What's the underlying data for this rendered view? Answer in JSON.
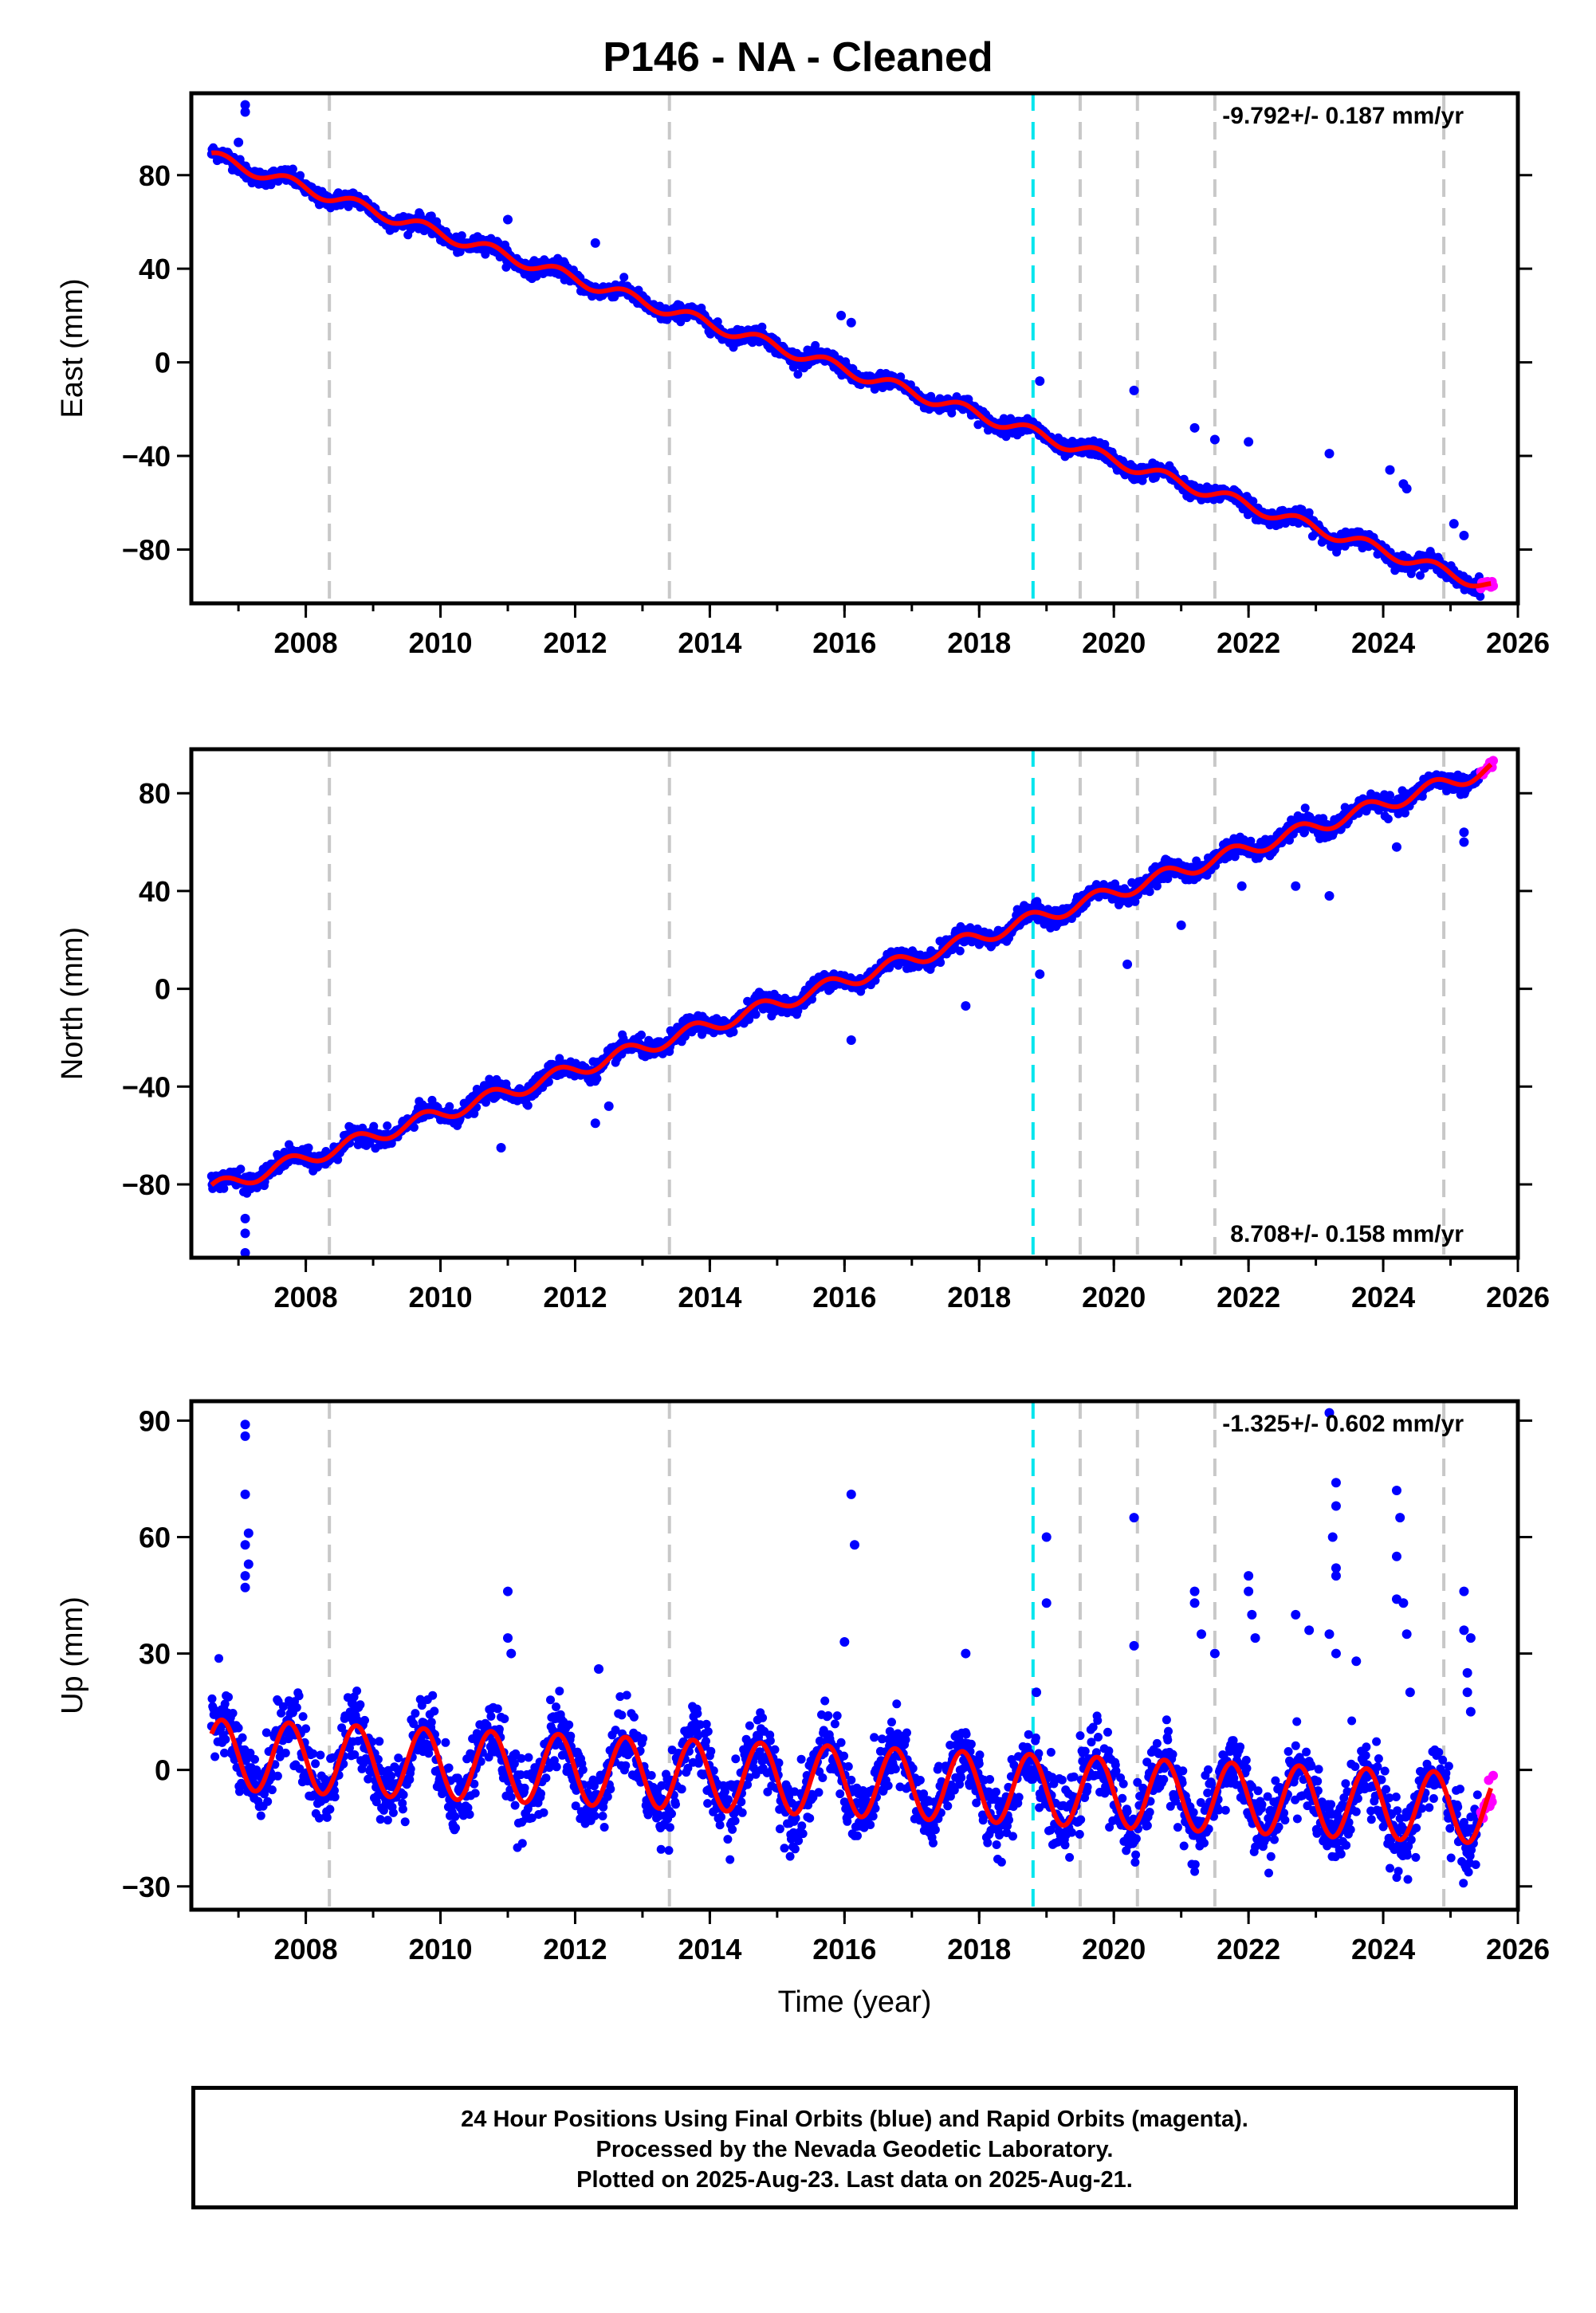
{
  "title": "P146  - NA - Cleaned",
  "footer": {
    "line1": "24 Hour Positions Using Final Orbits (blue) and Rapid Orbits (magenta).",
    "line2": "Processed by the Nevada Geodetic Laboratory.",
    "line3": "Plotted on 2025-Aug-23. Last data on 2025-Aug-21."
  },
  "colors": {
    "final_orbits": "#0000ff",
    "rapid_orbits": "#ff00ff",
    "model_fit": "#ff0000",
    "event_line_gray": "#c8c8c8",
    "event_line_cyan": "#00e5ee"
  },
  "chart_data": [
    {
      "type": "scatter",
      "ylabel": "East (mm)",
      "xlim": [
        2006.3,
        2026.0
      ],
      "ylim": [
        -103,
        115
      ],
      "xticks": [
        2008,
        2010,
        2012,
        2014,
        2016,
        2018,
        2020,
        2022,
        2024,
        2026
      ],
      "yticks": [
        -80,
        -40,
        0,
        40,
        80
      ],
      "rate_label": "-9.792+/- 0.187 mm/yr",
      "rate_position": "top-right",
      "event_lines_gray": [
        2008.35,
        2013.4,
        2019.5,
        2020.35,
        2021.5,
        2024.9
      ],
      "event_lines_cyan": [
        2018.8
      ],
      "trend": {
        "start": 2006.6,
        "end": 2025.6,
        "y_start": 88,
        "y_end": -96
      },
      "seasonal_amplitude": 2.5,
      "scatter_noise": 1.6,
      "rapid_orbits_range": [
        2025.45,
        2025.64
      ],
      "outliers": [
        [
          2007.1,
          107
        ],
        [
          2007.1,
          110
        ],
        [
          2007.0,
          94
        ],
        [
          2011.0,
          61
        ],
        [
          2012.3,
          51
        ],
        [
          2015.95,
          20
        ],
        [
          2016.1,
          17
        ],
        [
          2018.9,
          -8
        ],
        [
          2020.3,
          -12
        ],
        [
          2021.2,
          -28
        ],
        [
          2021.5,
          -33
        ],
        [
          2022.0,
          -34
        ],
        [
          2023.2,
          -39
        ],
        [
          2024.1,
          -46
        ],
        [
          2024.3,
          -52
        ],
        [
          2024.35,
          -54
        ],
        [
          2025.05,
          -69
        ],
        [
          2025.2,
          -74
        ]
      ]
    },
    {
      "type": "scatter",
      "ylabel": "North (mm)",
      "xlim": [
        2006.3,
        2026.0
      ],
      "ylim": [
        -110,
        98
      ],
      "xticks": [
        2008,
        2010,
        2012,
        2014,
        2016,
        2018,
        2020,
        2022,
        2024,
        2026
      ],
      "yticks": [
        -80,
        -40,
        0,
        40,
        80
      ],
      "rate_label": "8.708+/- 0.158 mm/yr",
      "rate_position": "bottom-right",
      "event_lines_gray": [
        2008.35,
        2013.4,
        2019.5,
        2020.35,
        2021.5,
        2024.9
      ],
      "event_lines_cyan": [
        2018.8
      ],
      "trend": {
        "start": 2006.6,
        "end": 2025.6,
        "y_start": -82,
        "y_end": 90
      },
      "seasonal_amplitude": 3,
      "scatter_noise": 1.8,
      "rapid_orbits_range": [
        2025.45,
        2025.64
      ],
      "outliers": [
        [
          2007.1,
          -94
        ],
        [
          2007.1,
          -100
        ],
        [
          2007.1,
          -108
        ],
        [
          2010.9,
          -65
        ],
        [
          2012.3,
          -55
        ],
        [
          2012.5,
          -48
        ],
        [
          2016.1,
          -21
        ],
        [
          2017.8,
          -7
        ],
        [
          2018.9,
          6
        ],
        [
          2020.2,
          10
        ],
        [
          2021.0,
          26
        ],
        [
          2021.9,
          42
        ],
        [
          2022.7,
          42
        ],
        [
          2023.2,
          38
        ],
        [
          2024.2,
          58
        ],
        [
          2025.2,
          60
        ],
        [
          2025.2,
          64
        ]
      ]
    },
    {
      "type": "scatter",
      "ylabel": "Up (mm)",
      "xlabel": "Time (year)",
      "xlim": [
        2006.3,
        2026.0
      ],
      "ylim": [
        -36,
        95
      ],
      "xticks": [
        2008,
        2010,
        2012,
        2014,
        2016,
        2018,
        2020,
        2022,
        2024,
        2026
      ],
      "yticks": [
        -30,
        0,
        30,
        60,
        90
      ],
      "rate_label": "-1.325+/- 0.602 mm/yr",
      "rate_position": "top-right",
      "event_lines_gray": [
        2008.35,
        2013.4,
        2019.5,
        2020.35,
        2021.5,
        2024.9
      ],
      "event_lines_cyan": [
        2018.8
      ],
      "trend": {
        "start": 2006.6,
        "end": 2025.6,
        "y_start": 4,
        "y_end": -10
      },
      "seasonal_amplitude": 9,
      "scatter_noise": 4.5,
      "rapid_orbits_range": [
        2025.45,
        2025.64
      ],
      "outliers": [
        [
          2007.1,
          89
        ],
        [
          2007.1,
          86
        ],
        [
          2007.1,
          71
        ],
        [
          2007.15,
          61
        ],
        [
          2007.1,
          58
        ],
        [
          2007.15,
          53
        ],
        [
          2007.1,
          50
        ],
        [
          2007.1,
          47
        ],
        [
          2011.0,
          46
        ],
        [
          2011.0,
          34
        ],
        [
          2011.05,
          30
        ],
        [
          2012.35,
          26
        ],
        [
          2016.1,
          71
        ],
        [
          2016.15,
          58
        ],
        [
          2016.0,
          33
        ],
        [
          2017.8,
          30
        ],
        [
          2018.85,
          20
        ],
        [
          2019.0,
          60
        ],
        [
          2019.0,
          43
        ],
        [
          2020.3,
          65
        ],
        [
          2020.3,
          32
        ],
        [
          2021.2,
          46
        ],
        [
          2021.2,
          43
        ],
        [
          2021.3,
          35
        ],
        [
          2021.5,
          30
        ],
        [
          2022.0,
          50
        ],
        [
          2022.0,
          46
        ],
        [
          2022.05,
          40
        ],
        [
          2022.1,
          34
        ],
        [
          2022.7,
          40
        ],
        [
          2022.9,
          36
        ],
        [
          2023.2,
          92
        ],
        [
          2023.3,
          74
        ],
        [
          2023.3,
          68
        ],
        [
          2023.25,
          60
        ],
        [
          2023.3,
          52
        ],
        [
          2023.3,
          50
        ],
        [
          2023.2,
          35
        ],
        [
          2023.3,
          30
        ],
        [
          2023.6,
          28
        ],
        [
          2024.2,
          72
        ],
        [
          2024.25,
          65
        ],
        [
          2024.2,
          55
        ],
        [
          2024.2,
          44
        ],
        [
          2024.3,
          43
        ],
        [
          2024.35,
          35
        ],
        [
          2024.4,
          20
        ],
        [
          2025.2,
          46
        ],
        [
          2025.2,
          36
        ],
        [
          2025.3,
          34
        ],
        [
          2025.25,
          25
        ],
        [
          2025.25,
          20
        ],
        [
          2025.3,
          15
        ]
      ]
    }
  ]
}
